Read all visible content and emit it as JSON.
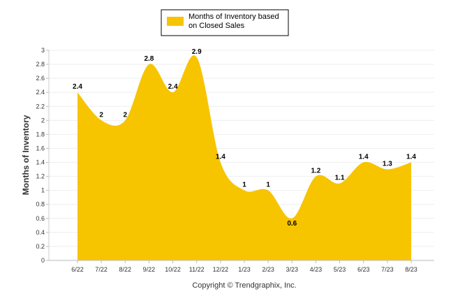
{
  "chart_data": {
    "type": "area",
    "title": "",
    "xlabel": "",
    "ylabel": "Months of Inventory",
    "ylim": [
      0,
      3
    ],
    "y_ticks": [
      "0",
      "0.2",
      "0.4",
      "0.6",
      "0.8",
      "1",
      "1.2",
      "1.4",
      "1.6",
      "1.8",
      "2",
      "2.2",
      "2.4",
      "2.6",
      "2.8",
      "3"
    ],
    "grid": "horizontal",
    "legend": "top-center",
    "categories": [
      "6/22",
      "7/22",
      "8/22",
      "9/22",
      "10/22",
      "11/22",
      "12/22",
      "1/23",
      "2/23",
      "3/23",
      "4/23",
      "5/23",
      "6/23",
      "7/23",
      "8/23"
    ],
    "series": [
      {
        "name": "Months of Inventory based on Closed Sales",
        "legend_lines": [
          "Months of Inventory based",
          "on Closed Sales"
        ],
        "color": "#f7c400",
        "values": [
          2.4,
          2,
          2,
          2.8,
          2.4,
          2.9,
          1.4,
          1,
          1,
          0.6,
          1.2,
          1.1,
          1.4,
          1.3,
          1.4
        ],
        "labels": [
          "2.4",
          "2",
          "2",
          "2.8",
          "2.4",
          "2.9",
          "1.4",
          "1",
          "1",
          "0.6",
          "1.2",
          "1.1",
          "1.4",
          "1.3",
          "1.4"
        ]
      }
    ],
    "footer": "Copyright © Trendgraphix, Inc."
  }
}
